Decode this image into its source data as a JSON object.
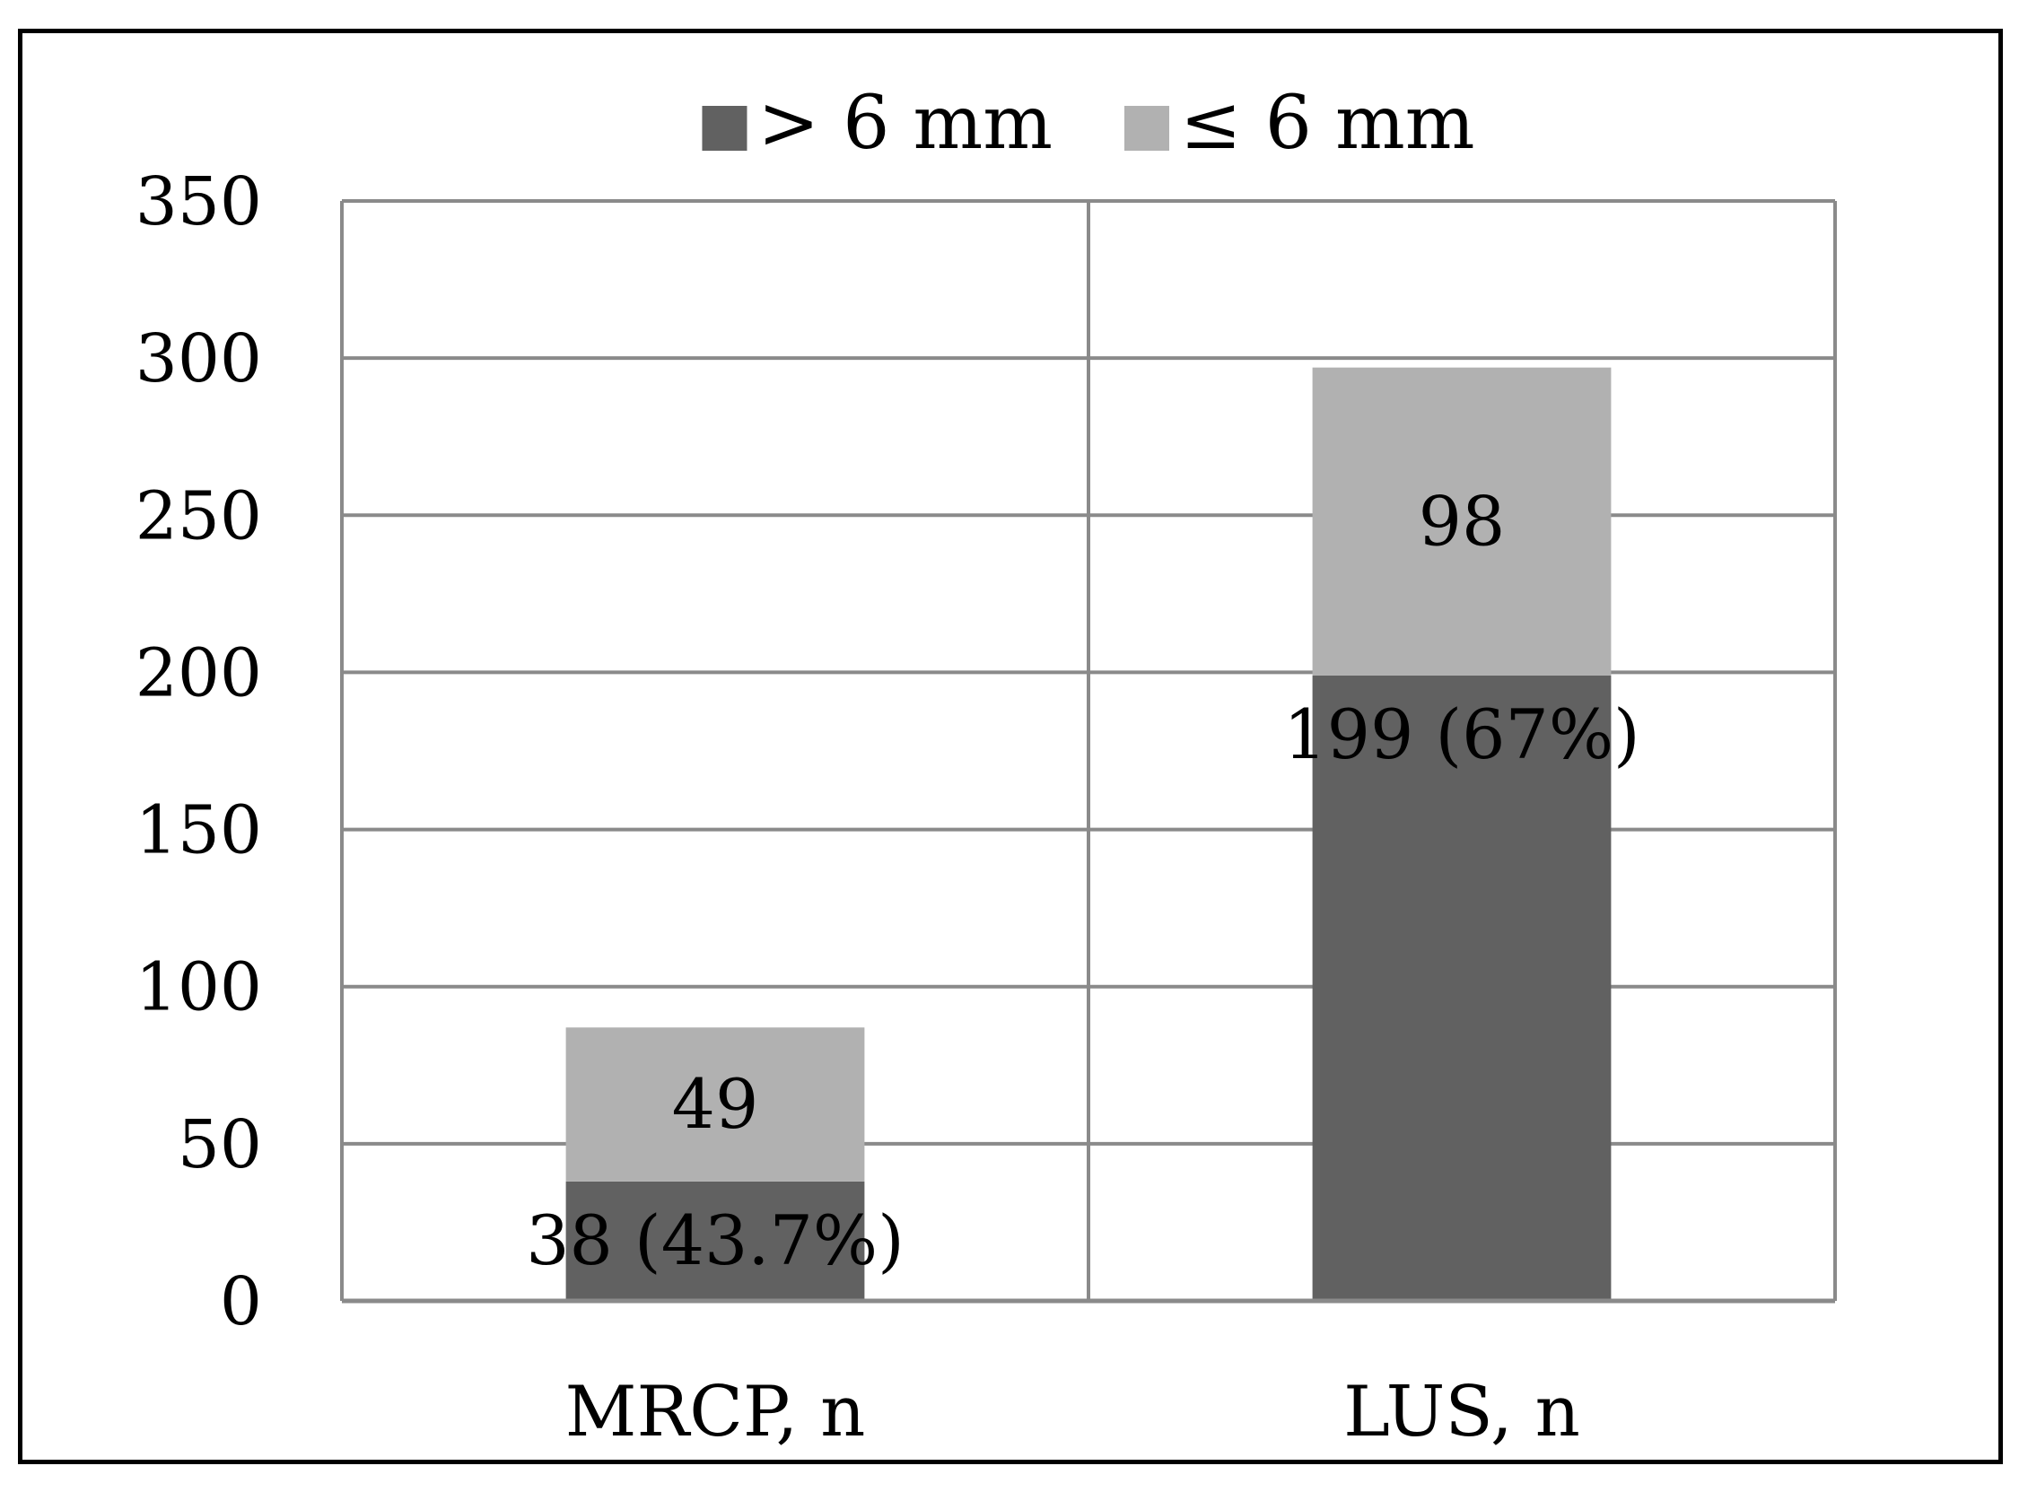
{
  "chart_data": {
    "type": "bar",
    "stacked": true,
    "categories": [
      "MRCP, n",
      "LUS, n"
    ],
    "series": [
      {
        "name": "> 6 mm",
        "color": "#616161",
        "values": [
          38,
          199
        ],
        "labels": [
          "38 (43.7%)",
          "199 (67%)"
        ]
      },
      {
        "name": "≤ 6 mm",
        "color": "#b1b1b1",
        "values": [
          49,
          98
        ],
        "labels": [
          "49",
          "98"
        ]
      }
    ],
    "ylim": [
      0,
      350
    ],
    "yticks": [
      "0",
      "50",
      "100",
      "150",
      "200",
      "250",
      "300",
      "350"
    ],
    "grid": true,
    "legend_position": "top-center",
    "title": "",
    "xlabel": "",
    "ylabel": ""
  }
}
